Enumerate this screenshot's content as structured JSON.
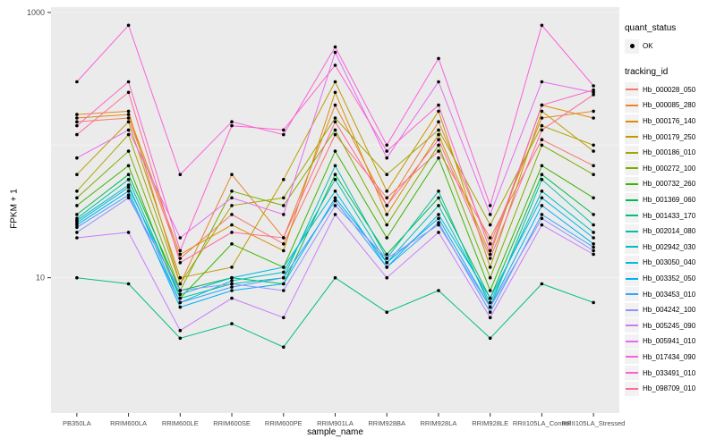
{
  "colors": {
    "panel_background": "#EBEBEB",
    "gridline": "#FFFFFF",
    "axis_text": "#4D4D4D",
    "tick_mark": "#333333",
    "point": "#000000",
    "legend_key_background": "#F2F2F2"
  },
  "legend": {
    "quant_status_title": "quant_status",
    "ok_label": "OK",
    "tracking_title": "tracking_id"
  },
  "chart_data": {
    "type": "line",
    "title": "",
    "xlabel": "sample_name",
    "ylabel": "FPKM + 1",
    "y_scale": "log10",
    "ylim": [
      1,
      1100
    ],
    "y_ticks": [
      10,
      1000
    ],
    "grid": "subtle-white-majors",
    "legend_position": "right",
    "point_shape": "filled-black-circle",
    "categories": [
      "PB350LA",
      "RRIM600LA",
      "RRIM600LE",
      "RRIM600SE",
      "RRIM600PE",
      "RRIM901LA",
      "RRIM928BA",
      "RRIM928LA",
      "RRIM928LE",
      "RRII105LA_Control",
      "RRII105LA_Stressed"
    ],
    "series": [
      {
        "name": "Hb_000028_050",
        "color": "#F8766D",
        "values": [
          150,
          160,
          14,
          30,
          18,
          120,
          40,
          90,
          20,
          110,
          70
        ]
      },
      {
        "name": "Hb_000085_280",
        "color": "#EA8331",
        "values": [
          170,
          180,
          9,
          60,
          20,
          200,
          35,
          150,
          18,
          160,
          180
        ]
      },
      {
        "name": "Hb_000176_140",
        "color": "#D89000",
        "values": [
          160,
          170,
          15,
          25,
          16,
          250,
          30,
          120,
          15,
          200,
          160
        ]
      },
      {
        "name": "Hb_000179_250",
        "color": "#C09B00",
        "values": [
          60,
          150,
          10,
          12,
          55,
          300,
          45,
          180,
          12,
          180,
          90
        ]
      },
      {
        "name": "Hb_000186_010",
        "color": "#A3A500",
        "values": [
          45,
          120,
          9,
          35,
          40,
          160,
          60,
          130,
          25,
          140,
          100
        ]
      },
      {
        "name": "Hb_000272_100",
        "color": "#7CAE00",
        "values": [
          40,
          90,
          8,
          45,
          35,
          130,
          25,
          100,
          10,
          100,
          60
        ]
      },
      {
        "name": "Hb_000732_260",
        "color": "#39B600",
        "values": [
          35,
          70,
          7,
          18,
          12,
          90,
          20,
          80,
          8,
          70,
          40
        ]
      },
      {
        "name": "Hb_001369_060",
        "color": "#00BB4E",
        "values": [
          30,
          60,
          8,
          10,
          9,
          60,
          15,
          40,
          7,
          60,
          30
        ]
      },
      {
        "name": "Hb_001433_170",
        "color": "#00BF7D",
        "values": [
          10,
          9,
          3.5,
          4.5,
          3,
          10,
          5.5,
          8,
          3.5,
          9,
          6.5
        ]
      },
      {
        "name": "Hb_002014_080",
        "color": "#00C1A3",
        "values": [
          28,
          55,
          7,
          9,
          10,
          70,
          14,
          45,
          6,
          55,
          25
        ]
      },
      {
        "name": "Hb_002942_030",
        "color": "#00BFC4",
        "values": [
          27,
          50,
          6.5,
          9.5,
          11,
          55,
          13,
          35,
          6.5,
          45,
          22
        ]
      },
      {
        "name": "Hb_003050_040",
        "color": "#00BAE0",
        "values": [
          26,
          48,
          7.5,
          10,
          12,
          45,
          12,
          30,
          7,
          40,
          20
        ]
      },
      {
        "name": "Hb_003352_050",
        "color": "#00B0F6",
        "values": [
          25,
          45,
          6,
          8,
          9,
          40,
          13,
          28,
          6,
          35,
          18
        ]
      },
      {
        "name": "Hb_003453_010",
        "color": "#35A2FF",
        "values": [
          24,
          42,
          6.5,
          8.5,
          10,
          38,
          12,
          26,
          5.5,
          30,
          17
        ]
      },
      {
        "name": "Hb_004242_100",
        "color": "#9590FF",
        "values": [
          22,
          40,
          8,
          9,
          8,
          35,
          14,
          25,
          6,
          28,
          16
        ]
      },
      {
        "name": "Hb_005245_090",
        "color": "#C77CFF",
        "values": [
          20,
          22,
          4,
          7,
          5,
          30,
          10,
          22,
          5,
          25,
          15
        ]
      },
      {
        "name": "Hb_005941_010",
        "color": "#E76BF3",
        "values": [
          80,
          130,
          20,
          40,
          30,
          500,
          80,
          300,
          30,
          300,
          250
        ]
      },
      {
        "name": "Hb_017434_090",
        "color": "#FA62DB",
        "values": [
          300,
          800,
          60,
          150,
          120,
          550,
          100,
          450,
          35,
          800,
          280
        ]
      },
      {
        "name": "Hb_033491_010",
        "color": "#FF61CC",
        "values": [
          140,
          300,
          16,
          140,
          130,
          400,
          90,
          200,
          16,
          200,
          260
        ]
      },
      {
        "name": "Hb_098709_010",
        "color": "#FF6A98",
        "values": [
          120,
          250,
          13,
          22,
          20,
          150,
          35,
          110,
          14,
          130,
          240
        ]
      }
    ]
  }
}
